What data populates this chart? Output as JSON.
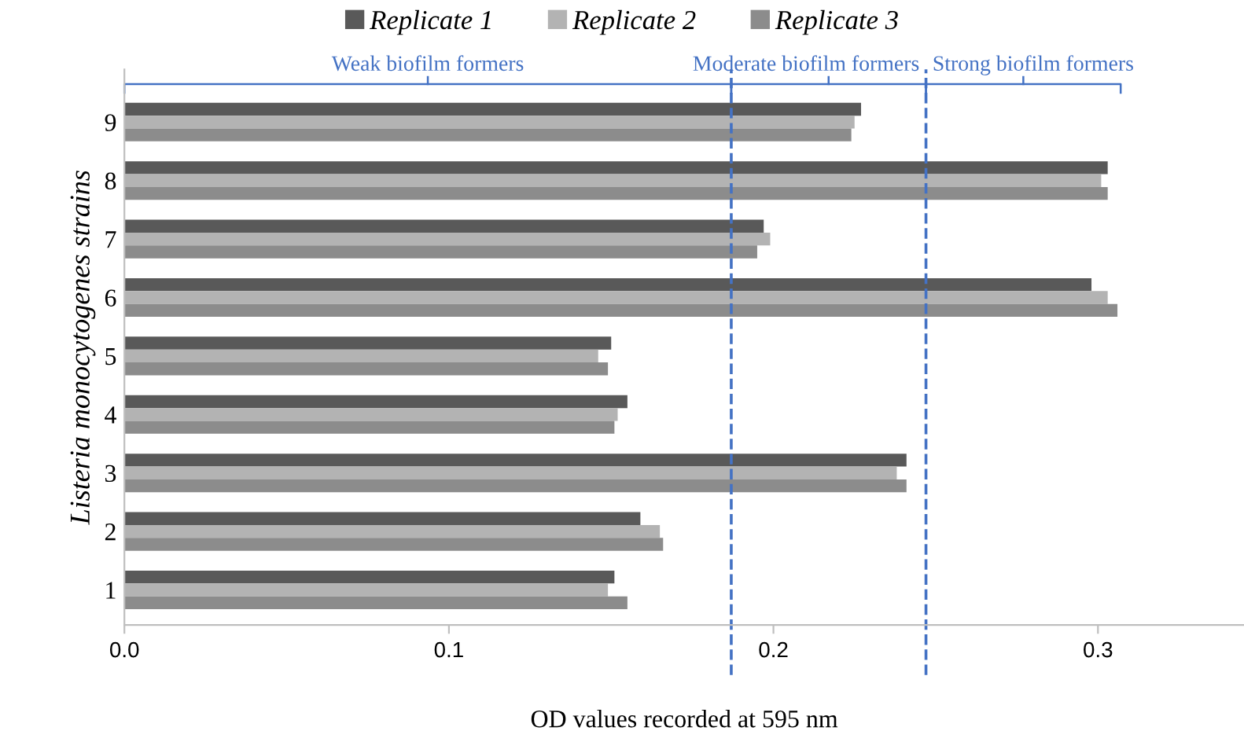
{
  "chart_data": {
    "type": "bar",
    "orientation": "horizontal",
    "xlabel": "OD values recorded at 595 nm",
    "ylabel": "Listeria monocytogenes strains",
    "categories": [
      "9",
      "8",
      "7",
      "6",
      "5",
      "4",
      "3",
      "2",
      "1"
    ],
    "series": [
      {
        "name": "Replicate 1",
        "color": "#595959",
        "values": [
          0.227,
          0.303,
          0.197,
          0.298,
          0.15,
          0.155,
          0.241,
          0.159,
          0.151
        ]
      },
      {
        "name": "Replicate 2",
        "color": "#b3b3b3",
        "values": [
          0.225,
          0.301,
          0.199,
          0.303,
          0.146,
          0.152,
          0.238,
          0.165,
          0.149
        ]
      },
      {
        "name": "Replicate 3",
        "color": "#8c8c8c",
        "values": [
          0.224,
          0.303,
          0.195,
          0.306,
          0.149,
          0.151,
          0.241,
          0.166,
          0.155
        ]
      }
    ],
    "xlim": [
      0,
      0.345
    ],
    "xticks": [
      {
        "value": 0,
        "label": "0.0"
      },
      0.1,
      0.2,
      0.3
    ],
    "ref_lines": [
      {
        "axis": "x",
        "value": 0.187,
        "color": "#4472c4",
        "line_style": "dashed"
      },
      {
        "axis": "x",
        "value": 0.247,
        "color": "#4472c4",
        "line_style": "dashed"
      }
    ],
    "annotations": [
      "Weak biofilm formers",
      "Moderate biofilm formers",
      "Strong biofilm formers"
    ],
    "grid": false,
    "legend": "top"
  }
}
